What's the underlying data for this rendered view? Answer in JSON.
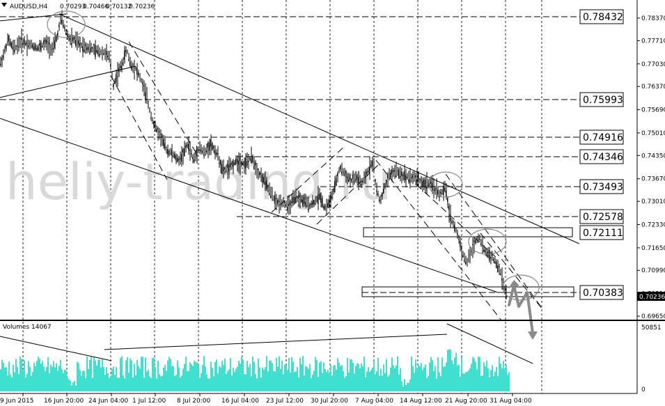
{
  "chart_data": [
    {
      "type": "candlestick",
      "symbol_header": "AUDUSD,H4",
      "ohlc": {
        "open": "0.70293",
        "high": "0.70466",
        "low": "0.70132",
        "close": "0.70236"
      },
      "current_price": "0.70236",
      "watermark": "heliy-trading.ru",
      "y_axis_ticks": [
        "0.78370",
        "0.77710",
        "0.77030",
        "0.76370",
        "0.75690",
        "0.75010",
        "0.74350",
        "0.73670",
        "0.73010",
        "0.72330",
        "0.71650",
        "0.70990",
        "0.70310",
        "0.69650"
      ],
      "x_axis_ticks": [
        "9 Jun 2015",
        "16 Jun 20:00",
        "24 Jun 04:00",
        "1 Jul 12:00",
        "8 Jul 20:00",
        "16 Jul 04:00",
        "23 Jul 12:00",
        "30 Jul 20:00",
        "7 Aug 04:00",
        "14 Aug 12:00",
        "21 Aug 20:00",
        "31 Aug 04:00"
      ],
      "levels": [
        "0.78432",
        "0.75993",
        "0.74916",
        "0.74346",
        "0.73493",
        "0.72578",
        "0.72111",
        "0.70383"
      ],
      "price_path": [
        [
          0,
          0.77
        ],
        [
          6,
          0.7735
        ],
        [
          12,
          0.7775
        ],
        [
          20,
          0.7745
        ],
        [
          30,
          0.777
        ],
        [
          42,
          0.776
        ],
        [
          55,
          0.775
        ],
        [
          66,
          0.7765
        ],
        [
          76,
          0.7745
        ],
        [
          83,
          0.779
        ],
        [
          88,
          0.784
        ],
        [
          94,
          0.78
        ],
        [
          100,
          0.7775
        ],
        [
          106,
          0.7775
        ],
        [
          115,
          0.776
        ],
        [
          128,
          0.775
        ],
        [
          140,
          0.774
        ],
        [
          152,
          0.7735
        ],
        [
          158,
          0.7715
        ],
        [
          163,
          0.764
        ],
        [
          168,
          0.767
        ],
        [
          175,
          0.77
        ],
        [
          182,
          0.7745
        ],
        [
          188,
          0.77
        ],
        [
          195,
          0.769
        ],
        [
          203,
          0.7655
        ],
        [
          210,
          0.761
        ],
        [
          216,
          0.756
        ],
        [
          222,
          0.752
        ],
        [
          230,
          0.7495
        ],
        [
          240,
          0.745
        ],
        [
          248,
          0.744
        ],
        [
          256,
          0.742
        ],
        [
          262,
          0.7435
        ],
        [
          270,
          0.747
        ],
        [
          278,
          0.742
        ],
        [
          286,
          0.746
        ],
        [
          294,
          0.744
        ],
        [
          302,
          0.747
        ],
        [
          312,
          0.744
        ],
        [
          320,
          0.739
        ],
        [
          330,
          0.74
        ],
        [
          340,
          0.742
        ],
        [
          352,
          0.741
        ],
        [
          362,
          0.743
        ],
        [
          370,
          0.739
        ],
        [
          380,
          0.736
        ],
        [
          390,
          0.732
        ],
        [
          398,
          0.7295
        ],
        [
          406,
          0.73
        ],
        [
          414,
          0.7285
        ],
        [
          424,
          0.731
        ],
        [
          434,
          0.7305
        ],
        [
          444,
          0.729
        ],
        [
          452,
          0.73
        ],
        [
          460,
          0.732
        ],
        [
          466,
          0.728
        ],
        [
          474,
          0.73
        ],
        [
          482,
          0.735
        ],
        [
          488,
          0.74
        ],
        [
          496,
          0.738
        ],
        [
          504,
          0.736
        ],
        [
          512,
          0.737
        ],
        [
          520,
          0.735
        ],
        [
          528,
          0.739
        ],
        [
          536,
          0.742
        ],
        [
          540,
          0.734
        ],
        [
          546,
          0.73
        ],
        [
          552,
          0.734
        ],
        [
          560,
          0.738
        ],
        [
          568,
          0.739
        ],
        [
          576,
          0.738
        ],
        [
          584,
          0.7375
        ],
        [
          592,
          0.737
        ],
        [
          600,
          0.737
        ],
        [
          608,
          0.735
        ],
        [
          616,
          0.7355
        ],
        [
          624,
          0.734
        ],
        [
          632,
          0.732
        ],
        [
          640,
          0.734
        ],
        [
          646,
          0.726
        ],
        [
          652,
          0.723
        ],
        [
          658,
          0.72
        ],
        [
          664,
          0.715
        ],
        [
          670,
          0.712
        ],
        [
          676,
          0.715
        ],
        [
          682,
          0.718
        ],
        [
          688,
          0.72
        ],
        [
          694,
          0.716
        ],
        [
          700,
          0.715
        ],
        [
          706,
          0.714
        ],
        [
          712,
          0.712
        ],
        [
          718,
          0.71
        ],
        [
          724,
          0.705
        ],
        [
          728,
          0.7023
        ]
      ],
      "volume_label": "Volumes 14067",
      "volume_axis": [
        "50851",
        "0"
      ]
    }
  ]
}
